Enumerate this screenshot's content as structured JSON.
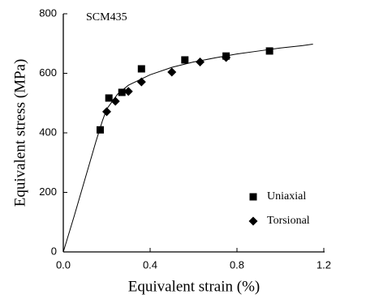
{
  "chart_data": {
    "type": "scatter",
    "annotation": "SCM435",
    "xlabel": "Equivalent strain (%)",
    "ylabel": "Equivalent stress (MPa)",
    "xlim": [
      0,
      1.2
    ],
    "ylim": [
      0,
      800
    ],
    "xticks": [
      {
        "value": 0,
        "label": "0.0"
      },
      0.4,
      0.8,
      1.2
    ],
    "yticks": [
      0,
      200,
      400,
      600,
      800
    ],
    "legend": "lower right",
    "series": [
      {
        "name": "Uniaxial",
        "color": "#000000",
        "marker": "square",
        "x": [
          0.17,
          0.21,
          0.27,
          0.36,
          0.56,
          0.75,
          0.95
        ],
        "values": [
          410,
          517,
          536,
          615,
          645,
          658,
          675
        ]
      },
      {
        "name": "Torsional",
        "color": "#000000",
        "marker": "diamond",
        "x": [
          0.2,
          0.24,
          0.3,
          0.36,
          0.5,
          0.63,
          0.75
        ],
        "values": [
          471,
          506,
          539,
          571,
          604,
          638,
          653
        ]
      }
    ],
    "curve": {
      "color": "#000000",
      "x": [
        0,
        0.05,
        0.1,
        0.15,
        0.18,
        0.2,
        0.25,
        0.3,
        0.4,
        0.5,
        0.6,
        0.7,
        0.8,
        0.9,
        1.0,
        1.1,
        1.15
      ],
      "values": [
        0,
        120,
        245,
        370,
        440,
        480,
        530,
        560,
        595,
        620,
        638,
        652,
        665,
        675,
        685,
        693,
        698
      ]
    }
  }
}
